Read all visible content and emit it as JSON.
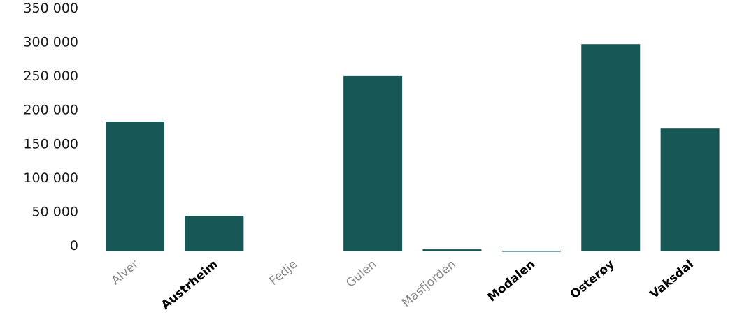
{
  "chart_data": {
    "type": "bar",
    "categories": [
      "Alver",
      "Austrheim",
      "Fedje",
      "Gulen",
      "Masfjorden",
      "Modalen",
      "Osterøy",
      "Vaksdal"
    ],
    "values": [
      191500,
      52500,
      0,
      258500,
      3000,
      1000,
      305500,
      181000
    ],
    "category_style": [
      "light",
      "bold",
      "light",
      "light",
      "light",
      "bold",
      "bold",
      "bold"
    ],
    "ytick_labels": [
      "0",
      "50 000",
      "100 000",
      "150 000",
      "200 000",
      "250 000",
      "300 000",
      "350 000"
    ],
    "yticks": [
      0,
      50000,
      100000,
      150000,
      200000,
      250000,
      300000,
      350000
    ],
    "ylim": [
      0,
      350000
    ],
    "grid": false,
    "legend": "none",
    "bar_color": "#175755"
  }
}
